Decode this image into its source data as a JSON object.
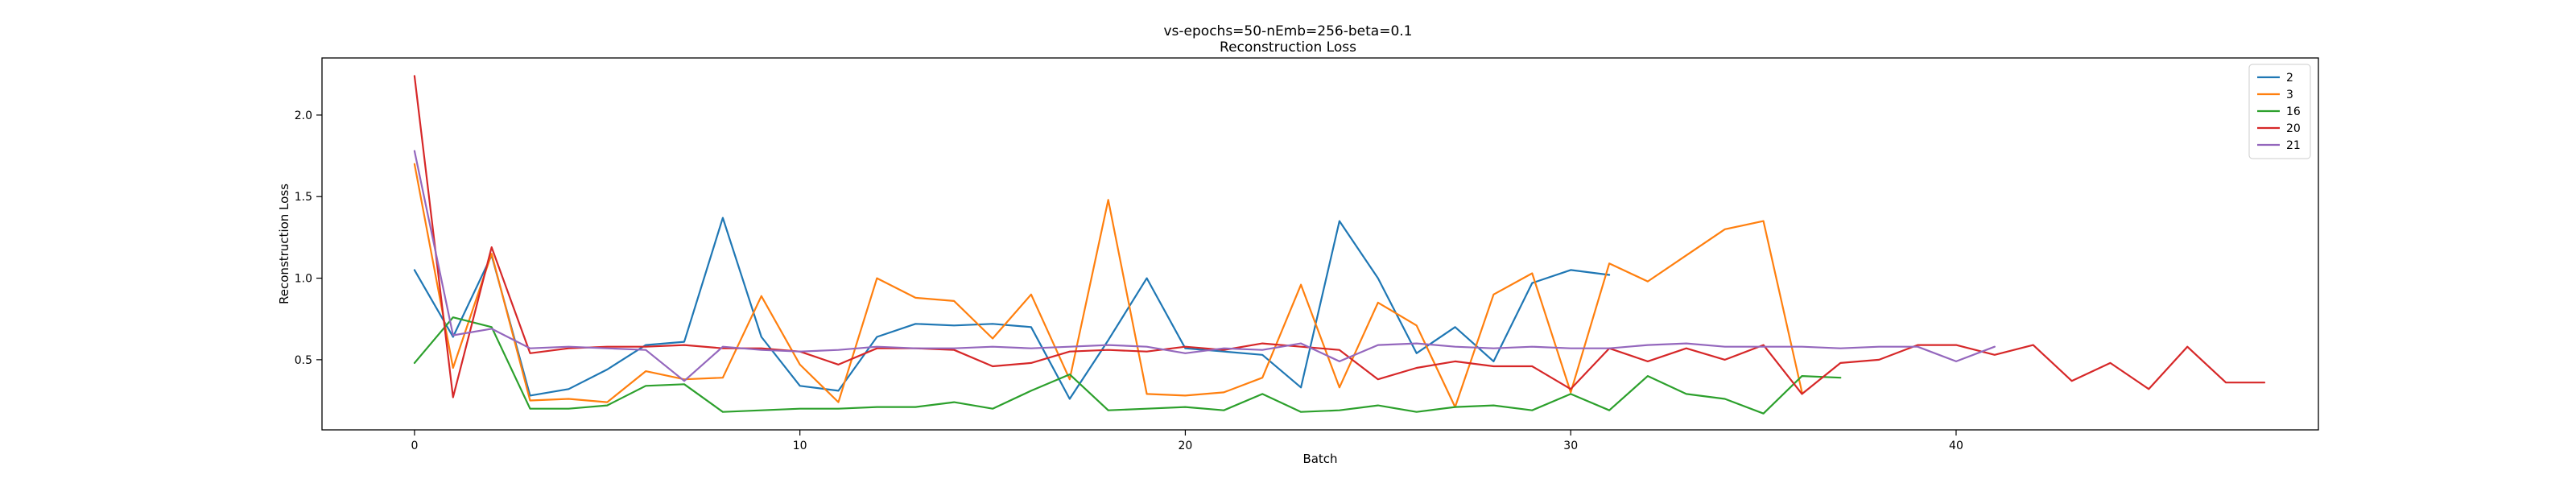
{
  "chart_data": {
    "type": "line",
    "title": "vs-epochs=50-nEmb=256-beta=0.1",
    "subtitle": "Reconstruction Loss",
    "xlabel": "Batch",
    "ylabel": "Reconstruction Loss",
    "xlim": [
      -2.4,
      49.4
    ],
    "ylim": [
      0.07,
      2.35
    ],
    "xticks": [
      0,
      10,
      20,
      30,
      40
    ],
    "yticks": [
      0.5,
      1.0,
      1.5,
      2.0
    ],
    "ytick_labels": [
      "0.5",
      "1.0",
      "1.5",
      "2.0"
    ],
    "grid": false,
    "legend_position": "top-right",
    "series": [
      {
        "name": "2",
        "color": "#1f77b4",
        "x": [
          0,
          1,
          2,
          3,
          4,
          5,
          6,
          7,
          8,
          9,
          10,
          11,
          12,
          13,
          14,
          15,
          16,
          17,
          18,
          19,
          20,
          21,
          22,
          23,
          24,
          25,
          26,
          27,
          28,
          29,
          30,
          31
        ],
        "values": [
          1.05,
          0.64,
          1.14,
          0.28,
          0.32,
          0.44,
          0.59,
          0.61,
          1.37,
          0.64,
          0.34,
          0.31,
          0.64,
          0.72,
          0.71,
          0.72,
          0.7,
          0.26,
          0.62,
          1.0,
          0.57,
          0.55,
          0.53,
          0.33,
          1.35,
          1.0,
          0.54,
          0.7,
          0.49,
          0.97,
          1.05,
          1.02
        ]
      },
      {
        "name": "3",
        "color": "#ff7f0e",
        "x": [
          0,
          1,
          2,
          3,
          4,
          5,
          6,
          7,
          8,
          9,
          10,
          11,
          12,
          13,
          14,
          15,
          16,
          17,
          18,
          19,
          20,
          21,
          22,
          23,
          24,
          25,
          26,
          27,
          28,
          29,
          30,
          31,
          32,
          33,
          34,
          35,
          36
        ],
        "values": [
          1.7,
          0.45,
          1.15,
          0.25,
          0.26,
          0.24,
          0.43,
          0.38,
          0.39,
          0.89,
          0.47,
          0.24,
          1.0,
          0.88,
          0.86,
          0.63,
          0.9,
          0.38,
          1.48,
          0.29,
          0.28,
          0.3,
          0.39,
          0.96,
          0.33,
          0.85,
          0.71,
          0.21,
          0.9,
          1.03,
          0.3,
          1.09,
          0.98,
          1.14,
          1.3,
          1.35,
          0.3
        ]
      },
      {
        "name": "16",
        "color": "#2ca02c",
        "x": [
          0,
          1,
          2,
          3,
          4,
          5,
          6,
          7,
          8,
          9,
          10,
          11,
          12,
          13,
          14,
          15,
          16,
          17,
          18,
          19,
          20,
          21,
          22,
          23,
          24,
          25,
          26,
          27,
          28,
          29,
          30,
          31,
          32,
          33,
          34,
          35,
          36,
          37
        ],
        "values": [
          0.48,
          0.76,
          0.7,
          0.2,
          0.2,
          0.22,
          0.34,
          0.35,
          0.18,
          0.19,
          0.2,
          0.2,
          0.21,
          0.21,
          0.24,
          0.2,
          0.31,
          0.41,
          0.19,
          0.2,
          0.21,
          0.19,
          0.29,
          0.18,
          0.19,
          0.22,
          0.18,
          0.21,
          0.22,
          0.19,
          0.29,
          0.19,
          0.4,
          0.29,
          0.26,
          0.17,
          0.4,
          0.39
        ]
      },
      {
        "name": "20",
        "color": "#d62728",
        "x": [
          0,
          1,
          2,
          3,
          4,
          5,
          6,
          7,
          8,
          9,
          10,
          11,
          12,
          13,
          14,
          15,
          16,
          17,
          18,
          19,
          20,
          21,
          22,
          23,
          24,
          25,
          26,
          27,
          28,
          29,
          30,
          31,
          32,
          33,
          34,
          35,
          36,
          37,
          38,
          39,
          40,
          41,
          42,
          43,
          44,
          45,
          46,
          47,
          48
        ],
        "values": [
          2.24,
          0.27,
          1.19,
          0.54,
          0.57,
          0.58,
          0.58,
          0.59,
          0.57,
          0.57,
          0.55,
          0.47,
          0.57,
          0.57,
          0.56,
          0.46,
          0.48,
          0.55,
          0.56,
          0.55,
          0.58,
          0.56,
          0.6,
          0.58,
          0.56,
          0.38,
          0.45,
          0.49,
          0.46,
          0.46,
          0.32,
          0.57,
          0.49,
          0.57,
          0.5,
          0.59,
          0.29,
          0.48,
          0.5,
          0.59,
          0.59,
          0.53,
          0.59,
          0.37,
          0.48,
          0.32,
          0.58,
          0.36,
          0.36
        ]
      },
      {
        "name": "21",
        "color": "#9467bd",
        "x": [
          0,
          1,
          2,
          3,
          4,
          5,
          6,
          7,
          8,
          9,
          10,
          11,
          12,
          13,
          14,
          15,
          16,
          17,
          18,
          19,
          20,
          21,
          22,
          23,
          24,
          25,
          26,
          27,
          28,
          29,
          30,
          31,
          32,
          33,
          34,
          35,
          36,
          37,
          38,
          39,
          40,
          41
        ],
        "values": [
          1.78,
          0.65,
          0.69,
          0.57,
          0.58,
          0.57,
          0.56,
          0.37,
          0.58,
          0.56,
          0.55,
          0.56,
          0.58,
          0.57,
          0.57,
          0.58,
          0.57,
          0.58,
          0.59,
          0.58,
          0.54,
          0.57,
          0.56,
          0.6,
          0.49,
          0.59,
          0.6,
          0.58,
          0.57,
          0.58,
          0.57,
          0.57,
          0.59,
          0.6,
          0.58,
          0.58,
          0.58,
          0.57,
          0.58,
          0.58,
          0.49,
          0.58
        ]
      }
    ]
  }
}
